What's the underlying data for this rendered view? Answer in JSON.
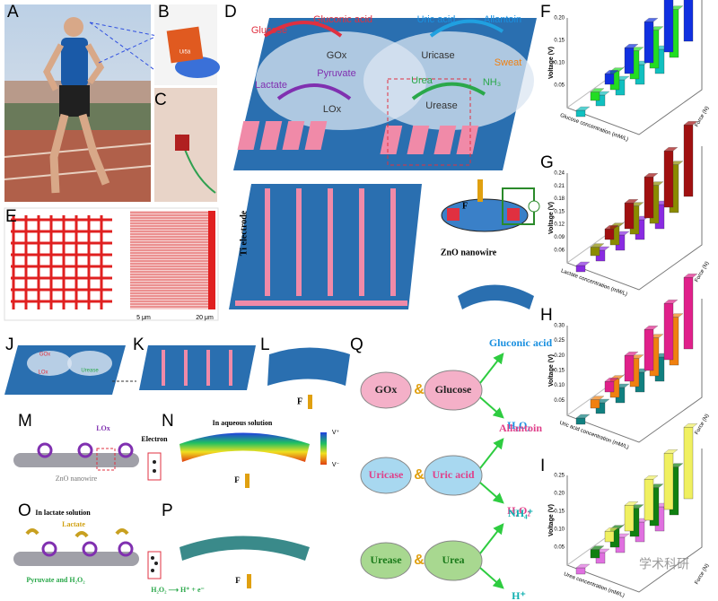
{
  "panel_labels": [
    "A",
    "B",
    "C",
    "D",
    "E",
    "F",
    "G",
    "H",
    "I",
    "J",
    "K",
    "L",
    "M",
    "N",
    "O",
    "P",
    "Q"
  ],
  "B": {
    "chip_text": "Ui5ä"
  },
  "D": {
    "labels": [
      "Glucose",
      "Gluconic acid",
      "Uric acid",
      "Allantoin",
      "GOx",
      "Uricase",
      "Sweat",
      "Lactate",
      "Pyruvate",
      "Urea",
      "NH₃",
      "LOx",
      "Urease",
      "Ti electrode",
      "ZnO nanowire",
      "F"
    ]
  },
  "E": {
    "scales": [
      "5 μm",
      "20 μm"
    ]
  },
  "J": {
    "labels": [
      "GOx",
      "LOx",
      "Urease"
    ]
  },
  "L": {
    "force": "F"
  },
  "M": {
    "labels": [
      "LOx",
      "Electron",
      "ZnO nanowire"
    ]
  },
  "N": {
    "labels": [
      "In aqueous solution",
      "V⁺",
      "V⁻",
      "F"
    ]
  },
  "O": {
    "labels": [
      "In lactate solution",
      "Lactate",
      "Pyruvate and H₂O₂",
      "H₂O₂ ⟶ H⁺ + e⁻"
    ]
  },
  "P": {
    "force": "F"
  },
  "Q": {
    "rows": [
      {
        "enzyme": "GOx",
        "amp": "&",
        "substrate": "Glucose",
        "product1": "Gluconic acid",
        "product2": "H₂O₂"
      },
      {
        "enzyme": "Uricase",
        "amp": "&",
        "substrate": "Uric acid",
        "product1": "Allantoin",
        "product2": "H₂O₂"
      },
      {
        "enzyme": "Urease",
        "amp": "&",
        "substrate": "Urea",
        "product1": "NH₄⁺",
        "product2": "H⁺"
      }
    ]
  },
  "charts": [
    {
      "y_label": "Voltage (V)",
      "yticks": [
        "0.05",
        "0.10",
        "0.15",
        "0.20"
      ],
      "x_label": "Force (N)",
      "z_label": "Glucose concentration (mM/L)",
      "colors": [
        "#10c0c0",
        "#22dd22",
        "#1030e0"
      ]
    },
    {
      "y_label": "Voltage (V)",
      "yticks": [
        "0.06",
        "0.09",
        "0.12",
        "0.15",
        "0.18",
        "0.21",
        "0.24"
      ],
      "x_label": "Force (N)",
      "z_label": "Lactate concentration (mM/L)",
      "colors": [
        "#8a2be2",
        "#8b8b00",
        "#a01010"
      ]
    },
    {
      "y_label": "Voltage (V)",
      "yticks": [
        "0.05",
        "0.10",
        "0.15",
        "0.20",
        "0.25",
        "0.30"
      ],
      "x_label": "Force (N)",
      "z_label": "Uric acid concentration (mM/L)",
      "colors": [
        "#108080",
        "#f08010",
        "#e0208a"
      ]
    },
    {
      "y_label": "Voltage (V)",
      "yticks": [
        "0.05",
        "0.10",
        "0.15",
        "0.20",
        "0.25"
      ],
      "x_label": "Force (N)",
      "z_label": "Urea concentration (mM/L)",
      "colors": [
        "#e070e0",
        "#108010",
        "#f0f060"
      ]
    }
  ],
  "watermark": "学术科研"
}
